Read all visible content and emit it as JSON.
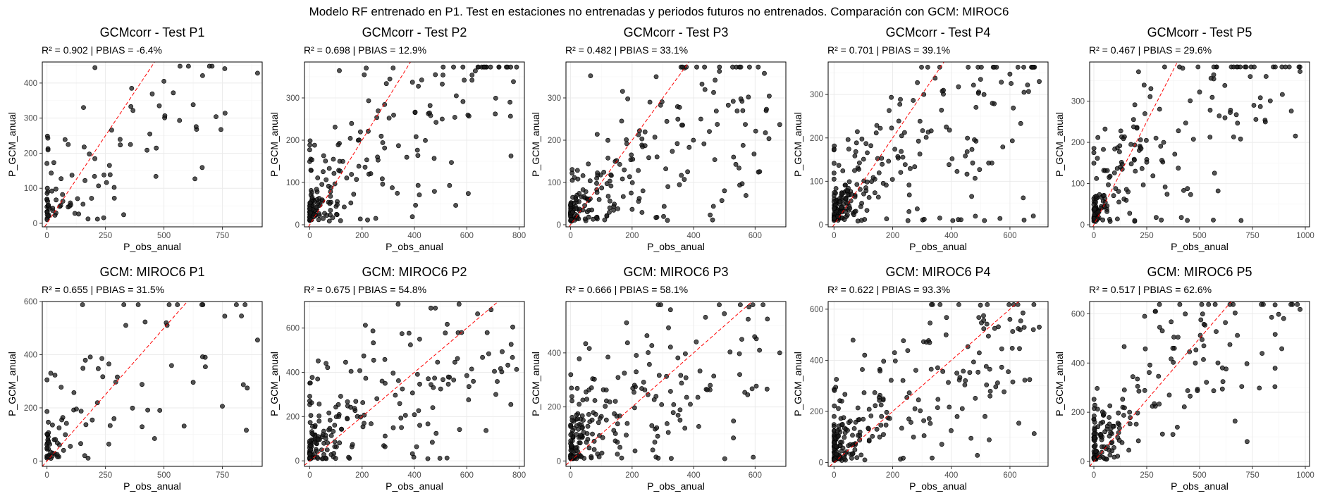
{
  "figure": {
    "suptitle": "Modelo RF entrenado en P1. Test en estaciones no entrenadas y periodos futuros no entrenados. Comparación con GCM: MIROC6",
    "colors": {
      "points": "#1a1a1a",
      "reference_line": "#ff0000",
      "grid": "#ebebeb"
    }
  },
  "chart_data": [
    {
      "type": "scatter",
      "title": "GCMcorr - Test P1",
      "subtitle": "R² = 0.902 | PBIAS = -6.4%",
      "xlabel": "P_obs_anual",
      "ylabel": "P_GCM_anual",
      "xlim": [
        -20,
        920
      ],
      "ylim": [
        -10,
        460
      ],
      "xticks": [
        0,
        250,
        500,
        750
      ],
      "yticks": [
        0,
        100,
        200,
        300,
        400
      ],
      "reference_line": "y = x",
      "n_points": 95,
      "seed": 11,
      "anchor_points": [
        [
          900,
          428
        ],
        [
          760,
          441
        ],
        [
          665,
          421
        ],
        [
          625,
          338
        ],
        [
          500,
          405
        ],
        [
          540,
          372
        ],
        [
          480,
          335
        ]
      ]
    },
    {
      "type": "scatter",
      "title": "GCMcorr - Test P2",
      "subtitle": "R² = 0.698 | PBIAS = 12.9%",
      "xlabel": "P_obs_anual",
      "ylabel": "P_GCM_anual",
      "xlim": [
        -20,
        820
      ],
      "ylim": [
        -5,
        385
      ],
      "xticks": [
        0,
        200,
        400,
        600,
        800
      ],
      "yticks": [
        0,
        100,
        200,
        300
      ],
      "reference_line": "y = x",
      "n_points": 210,
      "seed": 23,
      "anchor_points": [
        [
          790,
          373
        ],
        [
          620,
          342
        ],
        [
          590,
          342
        ],
        [
          560,
          305
        ],
        [
          480,
          355
        ]
      ]
    },
    {
      "type": "scatter",
      "title": "GCMcorr - Test P3",
      "subtitle": "R² = 0.482 | PBIAS = 33.1%",
      "xlabel": "P_obs_anual",
      "ylabel": "P_GCM_anual",
      "xlim": [
        -15,
        700
      ],
      "ylim": [
        -5,
        385
      ],
      "xticks": [
        0,
        200,
        400,
        600
      ],
      "yticks": [
        0,
        100,
        200,
        300
      ],
      "reference_line": "y = x",
      "n_points": 230,
      "seed": 37,
      "anchor_points": [
        [
          680,
          237
        ],
        [
          630,
          358
        ],
        [
          560,
          270
        ],
        [
          530,
          160
        ],
        [
          470,
          342
        ]
      ]
    },
    {
      "type": "scatter",
      "title": "GCMcorr - Test P4",
      "subtitle": "R² = 0.701 | PBIAS = 39.1%",
      "xlabel": "P_obs_anual",
      "ylabel": "P_GCM_anual",
      "xlim": [
        -20,
        730
      ],
      "ylim": [
        -5,
        375
      ],
      "xticks": [
        0,
        200,
        400,
        600
      ],
      "yticks": [
        0,
        100,
        200,
        300
      ],
      "reference_line": "y = x",
      "n_points": 260,
      "seed": 41,
      "anchor_points": [
        [
          700,
          330
        ],
        [
          660,
          322
        ],
        [
          600,
          347
        ],
        [
          540,
          280
        ],
        [
          500,
          335
        ]
      ]
    },
    {
      "type": "scatter",
      "title": "GCMcorr - Test P5",
      "subtitle": "R² = 0.467 | PBIAS = 29.6%",
      "xlabel": "P_obs_anual",
      "ylabel": "P_GCM_anual",
      "xlim": [
        -20,
        1020
      ],
      "ylim": [
        -5,
        395
      ],
      "xticks": [
        0,
        250,
        500,
        750,
        1000
      ],
      "yticks": [
        0,
        100,
        200,
        300
      ],
      "reference_line": "y = x",
      "n_points": 200,
      "seed": 53,
      "anchor_points": [
        [
          975,
          372
        ],
        [
          550,
          278
        ],
        [
          500,
          322
        ],
        [
          420,
          380
        ],
        [
          400,
          228
        ]
      ]
    },
    {
      "type": "scatter",
      "title": "GCM: MIROC6 P1",
      "subtitle": "R² = 0.655 | PBIAS = 31.5%",
      "xlabel": "P_obs_anual",
      "ylabel": "P_GCM_anual",
      "xlim": [
        -20,
        920
      ],
      "ylim": [
        -20,
        600
      ],
      "xticks": [
        0,
        250,
        500,
        750
      ],
      "yticks": [
        0,
        200,
        400,
        600
      ],
      "reference_line": "y = x",
      "n_points": 95,
      "seed": 67,
      "anchor_points": [
        [
          900,
          455
        ],
        [
          760,
          545
        ],
        [
          665,
          392
        ],
        [
          625,
          296
        ],
        [
          510,
          520
        ]
      ]
    },
    {
      "type": "scatter",
      "title": "GCM: MIROC6 P2",
      "subtitle": "R² = 0.675 | PBIAS = 54.8%",
      "xlabel": "P_obs_anual",
      "ylabel": "P_GCM_anual",
      "xlim": [
        -20,
        820
      ],
      "ylim": [
        -25,
        720
      ],
      "xticks": [
        0,
        200,
        400,
        600,
        800
      ],
      "yticks": [
        0,
        200,
        400,
        600
      ],
      "reference_line": "y = x",
      "n_points": 210,
      "seed": 79,
      "anchor_points": [
        [
          790,
          413
        ],
        [
          600,
          385
        ],
        [
          580,
          580
        ],
        [
          480,
          690
        ],
        [
          420,
          550
        ]
      ]
    },
    {
      "type": "scatter",
      "title": "GCM: MIROC6 P3",
      "subtitle": "R² = 0.666 | PBIAS = 58.1%",
      "xlabel": "P_obs_anual",
      "ylabel": "P_GCM_anual",
      "xlim": [
        -15,
        700
      ],
      "ylim": [
        -20,
        590
      ],
      "xticks": [
        0,
        200,
        400,
        600
      ],
      "yticks": [
        0,
        200,
        400
      ],
      "reference_line": "y = x",
      "n_points": 230,
      "seed": 83,
      "anchor_points": [
        [
          680,
          400
        ],
        [
          640,
          525
        ],
        [
          580,
          570
        ],
        [
          550,
          320
        ],
        [
          500,
          545
        ]
      ]
    },
    {
      "type": "scatter",
      "title": "GCM: MIROC6 P4",
      "subtitle": "R² = 0.622 | PBIAS = 93.3%",
      "xlabel": "P_obs_anual",
      "ylabel": "P_GCM_anual",
      "xlim": [
        -20,
        730
      ],
      "ylim": [
        -15,
        630
      ],
      "xticks": [
        0,
        200,
        400,
        600
      ],
      "yticks": [
        0,
        200,
        400,
        600
      ],
      "reference_line": "y = x",
      "n_points": 260,
      "seed": 97,
      "anchor_points": [
        [
          700,
          530
        ],
        [
          680,
          520
        ],
        [
          600,
          560
        ],
        [
          510,
          575
        ],
        [
          420,
          180
        ]
      ]
    },
    {
      "type": "scatter",
      "title": "GCM: MIROC6 P5",
      "subtitle": "R² = 0.517 | PBIAS = 62.6%",
      "xlabel": "P_obs_anual",
      "ylabel": "P_GCM_anual",
      "xlim": [
        -20,
        1020
      ],
      "ylim": [
        -20,
        650
      ],
      "xticks": [
        0,
        250,
        500,
        750,
        1000
      ],
      "yticks": [
        0,
        200,
        400,
        600
      ],
      "reference_line": "y = x",
      "n_points": 200,
      "seed": 101,
      "anchor_points": [
        [
          975,
          618
        ],
        [
          520,
          470
        ],
        [
          480,
          400
        ],
        [
          290,
          610
        ],
        [
          240,
          590
        ]
      ]
    }
  ]
}
